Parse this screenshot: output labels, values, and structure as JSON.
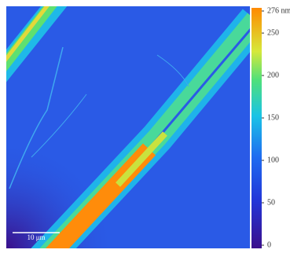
{
  "scale_bar": {
    "label": "10 μm"
  },
  "colorbar": {
    "lim": [
      0,
      276
    ],
    "ticks": [
      0,
      50,
      100,
      150,
      200,
      250,
      {
        "value": 276,
        "label": "276 nm"
      }
    ]
  }
}
